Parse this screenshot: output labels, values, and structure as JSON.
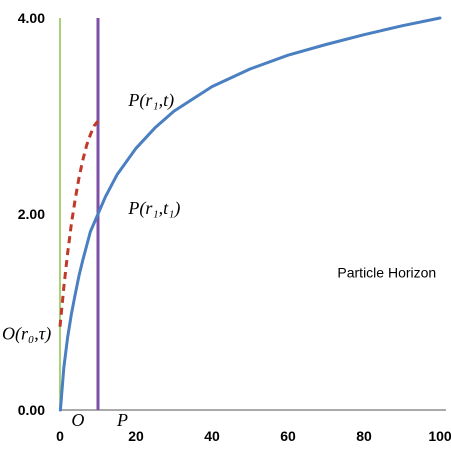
{
  "chart_data": {
    "type": "line",
    "title": "",
    "xlabel": "",
    "ylabel": "",
    "xlim": [
      0,
      100
    ],
    "ylim": [
      0,
      4
    ],
    "x_ticks": [
      "0",
      "20",
      "40",
      "60",
      "80",
      "100"
    ],
    "y_ticks": [
      "0.00",
      "2.00",
      "4.00"
    ],
    "grid": false,
    "series": [
      {
        "style": "solid",
        "color": "#4a7fc1",
        "x": [
          0.1,
          1,
          2,
          3,
          4,
          5,
          6,
          8,
          10,
          12,
          15,
          20,
          25,
          30,
          40,
          50,
          60,
          70,
          80,
          90,
          100
        ],
        "y": [
          0,
          0.43,
          0.74,
          0.98,
          1.18,
          1.37,
          1.53,
          1.82,
          2.0,
          2.18,
          2.4,
          2.67,
          2.88,
          3.05,
          3.3,
          3.48,
          3.62,
          3.73,
          3.83,
          3.92,
          4.0
        ]
      },
      {
        "style": "dashed",
        "color": "#c0392b",
        "x": [
          0,
          1,
          2,
          3,
          4,
          5,
          6,
          7,
          8,
          9,
          10
        ],
        "y": [
          0.85,
          1.25,
          1.6,
          1.9,
          2.15,
          2.37,
          2.55,
          2.7,
          2.81,
          2.9,
          2.95
        ]
      }
    ],
    "vertical_lines": [
      {
        "x": 0,
        "color": "#8bc34a"
      },
      {
        "x": 10,
        "color": "#7e4fa6"
      }
    ],
    "annotations": [
      {
        "id": "p-r1-t",
        "text": "P(r₁,t)",
        "x": 18,
        "y": 3.1
      },
      {
        "id": "p-r1-t1",
        "text": "P(r₁,t₁)",
        "x": 18,
        "y": 2.0
      },
      {
        "id": "o-r0-tau",
        "text": "O(r₀,τ)",
        "x": -0.5,
        "y": 0.72
      },
      {
        "id": "particle-horizon",
        "text": "Particle Horizon",
        "x": 73,
        "y": 1.35
      },
      {
        "id": "point-o",
        "text": "O",
        "x": 3,
        "y": -0.12
      },
      {
        "id": "point-p",
        "text": "P",
        "x": 15,
        "y": -0.12
      }
    ]
  },
  "colors": {
    "axis": "#555555",
    "background": "#ffffff"
  }
}
